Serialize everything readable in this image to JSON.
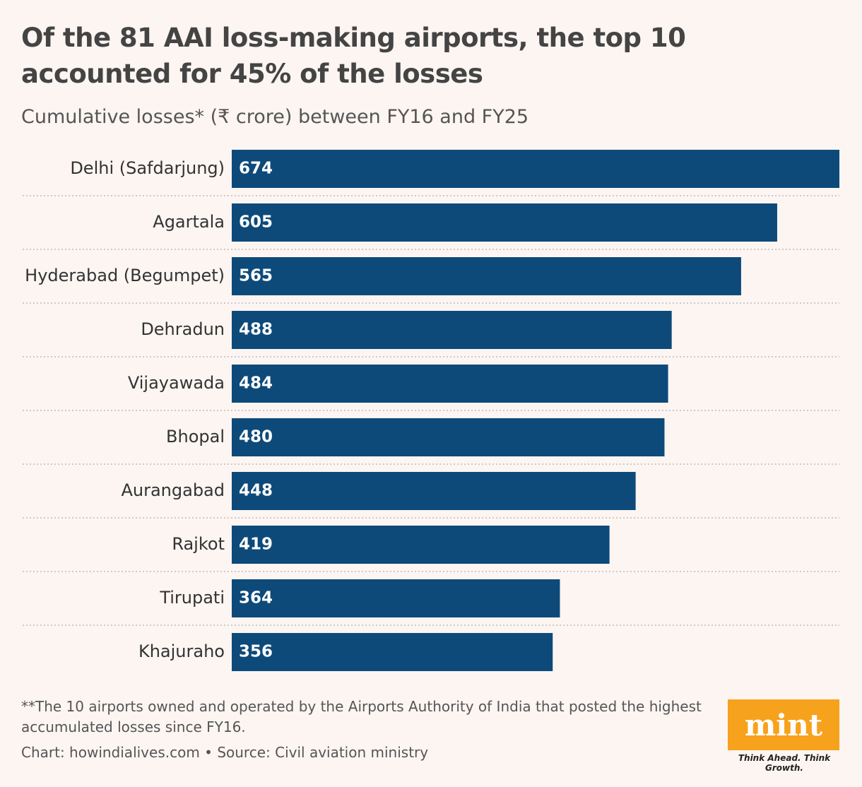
{
  "chart_data": {
    "type": "bar",
    "orientation": "horizontal",
    "title": "Of the 81 AAI loss-making airports, the top 10 accounted for 45% of the losses",
    "subtitle": "Cumulative losses* (₹ crore) between FY16 and FY25",
    "categories": [
      "Delhi (Safdarjung)",
      "Agartala",
      "Hyderabad (Begumpet)",
      "Dehradun",
      "Vijayawada",
      "Bhopal",
      "Aurangabad",
      "Rajkot",
      "Tirupati",
      "Khajuraho"
    ],
    "values": [
      674,
      605,
      565,
      488,
      484,
      480,
      448,
      419,
      364,
      356
    ],
    "color": "#0d4a7a",
    "footnote": "**The 10 airports owned and operated by the Airports Authority of India that posted the highest accumulated losses since FY16.",
    "source": "Chart: howindialives.com • Source: Civil aviation ministry",
    "logo": "mint",
    "tagline": "Think Ahead. Think Growth."
  }
}
